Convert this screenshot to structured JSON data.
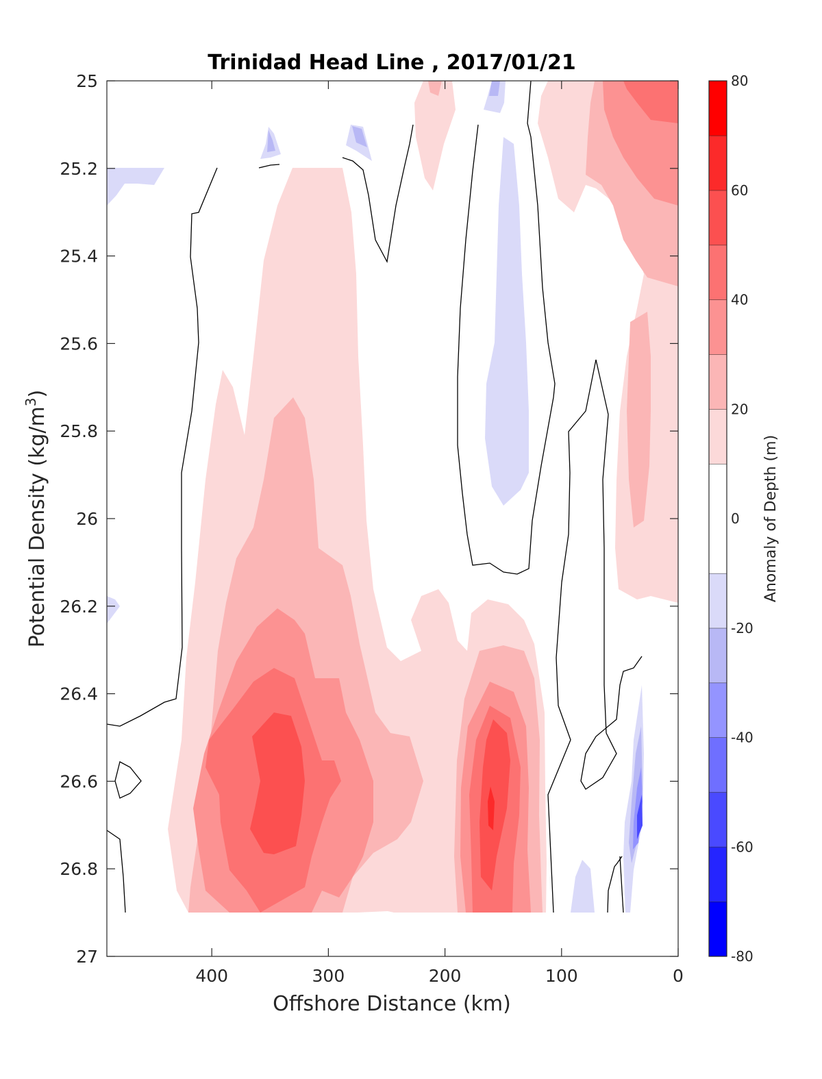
{
  "chart_data": {
    "type": "contour",
    "title": "Trinidad Head Line , 2017/01/21",
    "xlabel": "Offshore Distance (km)",
    "ylabel": "Potential Density (kg/m³)",
    "ylabel_base": "Potential Density (kg/m",
    "ylabel_sup": "3",
    "ylabel_close": ")",
    "x_axis": {
      "range": [
        490,
        0
      ],
      "reversed": true,
      "ticks": [
        400,
        300,
        200,
        100,
        0
      ]
    },
    "y_axis": {
      "range": [
        25,
        27
      ],
      "reversed": true,
      "ticks": [
        "25",
        "25.2",
        "25.4",
        "25.6",
        "25.8",
        "26",
        "26.2",
        "26.4",
        "26.6",
        "26.8",
        "27"
      ]
    },
    "colorbar": {
      "label": "Anomaly of Depth (m)",
      "range": [
        -80,
        80
      ],
      "ticks": [
        "80",
        "60",
        "40",
        "20",
        "0",
        "-20",
        "-40",
        "-60",
        "-80"
      ],
      "levels": [
        -80,
        -70,
        -60,
        -50,
        -40,
        -30,
        -20,
        -10,
        10,
        20,
        30,
        40,
        50,
        60,
        70,
        80
      ],
      "colors": [
        "#0000ff",
        "#2525ff",
        "#4a4aff",
        "#6f6fff",
        "#9494ff",
        "#b8b8f5",
        "#dadaf9",
        "#ffffff",
        "#fcd9d9",
        "#fbb6b6",
        "#fc9292",
        "#fc7272",
        "#fc5050",
        "#fc2a2a",
        "#ff0000"
      ]
    },
    "data_extent": {
      "x": [
        490,
        20
      ],
      "y": [
        25,
        26.9
      ]
    },
    "features": [
      {
        "name": "offshore positive core",
        "x": 335,
        "y": 26.6,
        "peak_anomaly": 55
      },
      {
        "name": "nearshore positive core",
        "x": 155,
        "y": 26.65,
        "peak_anomaly": 60
      },
      {
        "name": "upper positive tongue",
        "x": 300,
        "y": 25.6,
        "peak_anomaly": 15
      },
      {
        "name": "coastal positive band",
        "x": 30,
        "y": 25.2,
        "peak_anomaly": 45
      },
      {
        "name": "negative tongue",
        "x": 150,
        "y": 25.8,
        "peak_anomaly": -15
      },
      {
        "name": "negative patch near shore",
        "x": 35,
        "y": 26.7,
        "peak_anomaly": -60
      }
    ]
  }
}
